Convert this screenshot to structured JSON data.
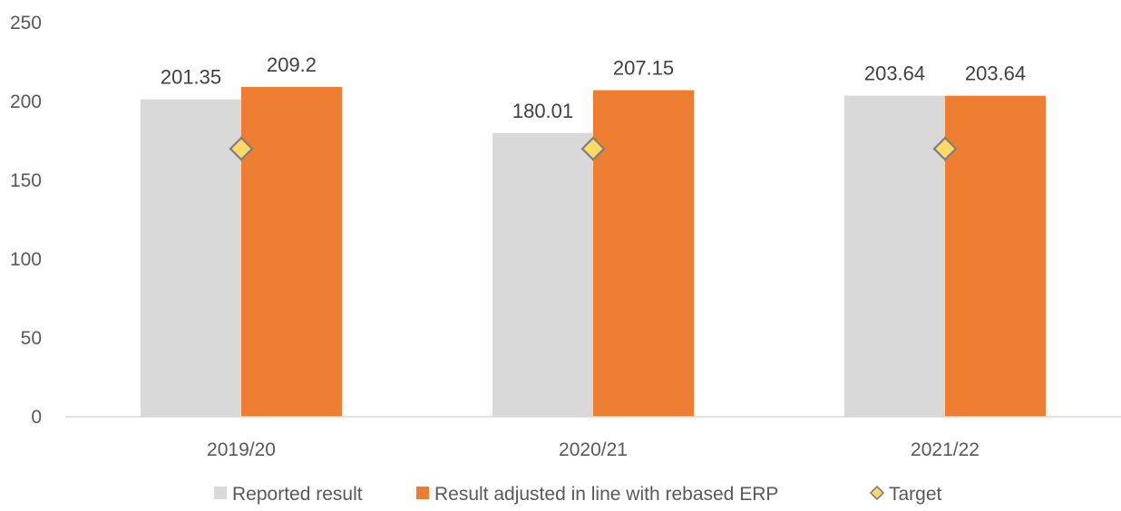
{
  "chart_data": {
    "type": "bar",
    "title": "",
    "xlabel": "",
    "ylabel": "",
    "categories": [
      "2019/20",
      "2020/21",
      "2021/22"
    ],
    "series": [
      {
        "name": "Reported result",
        "kind": "bar",
        "color": "#d9d9d9",
        "values": [
          201.35,
          180.01,
          203.64
        ],
        "labels": [
          "201.35",
          "180.01",
          "203.64"
        ]
      },
      {
        "name": "Result adjusted in line with rebased ERP",
        "kind": "bar",
        "color": "#ed7d31",
        "values": [
          209.2,
          207.15,
          203.64
        ],
        "labels": [
          "209.2",
          "207.15",
          "203.64"
        ]
      },
      {
        "name": "Target",
        "kind": "marker",
        "marker": "diamond",
        "color": "#ffd966",
        "stroke": "#7f7f7f",
        "values": [
          170,
          170,
          170
        ]
      }
    ],
    "ylim": [
      0,
      250
    ],
    "yticks": [
      "0",
      "50",
      "100",
      "150",
      "200",
      "250"
    ],
    "grid": false,
    "legend_position": "bottom"
  }
}
